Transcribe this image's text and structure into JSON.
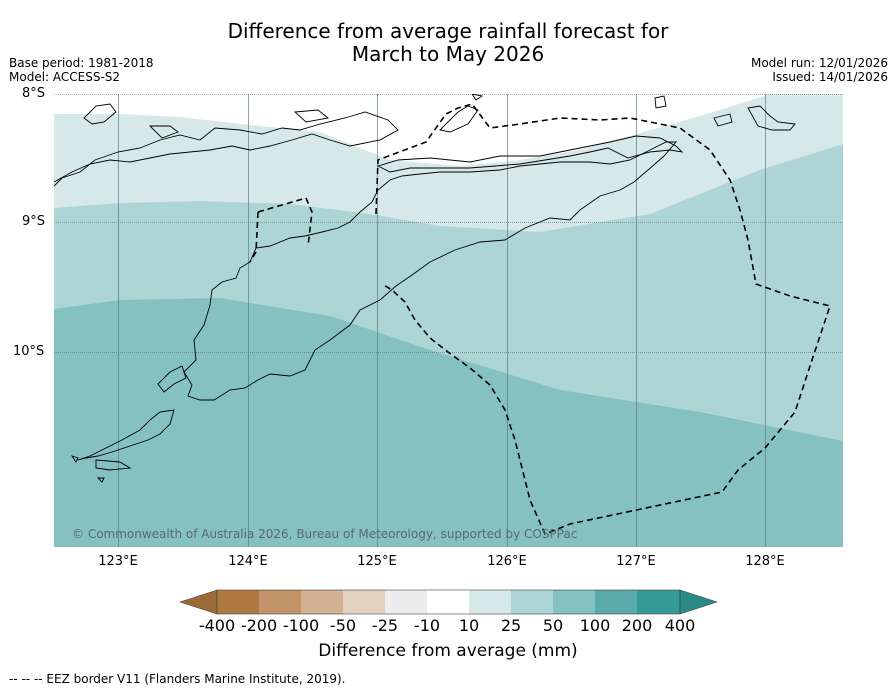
{
  "title_line1": "Difference from average rainfall forecast for",
  "title_line2": "March to May 2026",
  "base_period": "Base period: 1981-2018",
  "model": "Model: ACCESS-S2",
  "model_run": "Model run: 12/01/2026",
  "issued": "Issued: 14/01/2026",
  "lat_labels": [
    "8°S",
    "9°S",
    "10°S"
  ],
  "lon_labels": [
    "123°E",
    "124°E",
    "125°E",
    "126°E",
    "127°E",
    "128°E"
  ],
  "copyright": "© Commonwealth of Australia 2026, Bureau of Meteorology, supported by COSPPac",
  "colorbar": {
    "title": "Difference from average (mm)",
    "labels": [
      "-400",
      "-200",
      "-100",
      "-50",
      "-25",
      "-10",
      "10",
      "25",
      "50",
      "100",
      "200",
      "400"
    ],
    "colors": [
      "#9c6a37",
      "#ae7842",
      "#c29369",
      "#d3b294",
      "#e4d0be",
      "#ececec",
      "#ffffff",
      "#d6e9e8",
      "#add5d5",
      "#84c1c0",
      "#59aaa9",
      "#349a97",
      "#2a8a86"
    ]
  },
  "map_colors": {
    "band_light": "#d6e9e8",
    "band_mid": "#add5d5",
    "band_dark": "#84c1c0"
  },
  "footnote": "--  --  -- EEZ border V11 (Flanders Marine Institute, 2019)."
}
